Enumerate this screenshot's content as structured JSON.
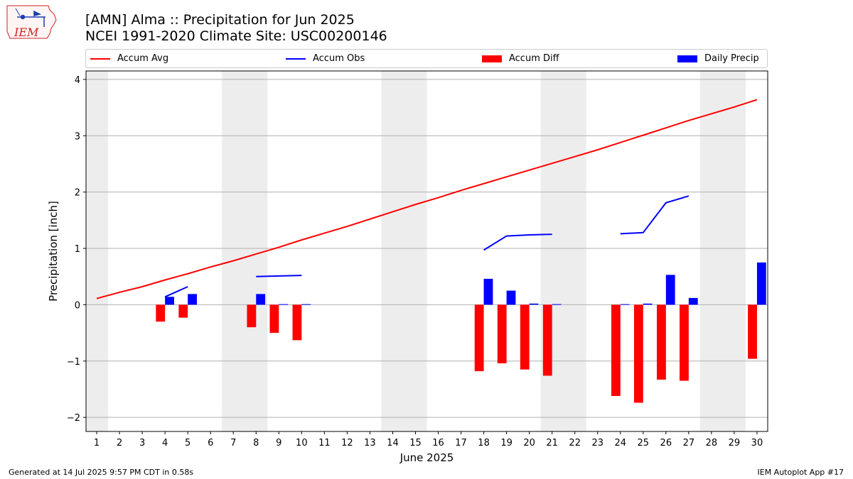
{
  "header": {
    "title_line1": "[AMN] Alma :: Precipitation for Jun 2025",
    "title_line2": "NCEI 1991-2020 Climate Site: USC00200146"
  },
  "logo": {
    "text": "IEM",
    "icon": "iem-iowa-logo-icon"
  },
  "legend": {
    "items": [
      {
        "label": "Accum Avg",
        "kind": "line",
        "color": "#ff0000"
      },
      {
        "label": "Accum Obs",
        "kind": "line",
        "color": "#0000ff"
      },
      {
        "label": "Accum Diff",
        "kind": "bar",
        "color": "#ff0000"
      },
      {
        "label": "Daily Precip",
        "kind": "bar",
        "color": "#0000ff"
      }
    ]
  },
  "footer": {
    "left": "Generated at 14 Jul 2025 9:57 PM CDT in 0.58s",
    "right": "IEM Autoplot App #17"
  },
  "chart_data": {
    "type": "bar",
    "xlabel": "June 2025",
    "ylabel": "Precipitation [inch]",
    "ylim": [
      -2.25,
      4.15
    ],
    "yticks": [
      -2,
      -1,
      0,
      1,
      2,
      3,
      4
    ],
    "ytick_labels": [
      "−2",
      "−1",
      "0",
      "1",
      "2",
      "3",
      "4"
    ],
    "x": [
      1,
      2,
      3,
      4,
      5,
      6,
      7,
      8,
      9,
      10,
      11,
      12,
      13,
      14,
      15,
      16,
      17,
      18,
      19,
      20,
      21,
      22,
      23,
      24,
      25,
      26,
      27,
      28,
      29,
      30
    ],
    "grid": "horizontal",
    "weekend_shading": [
      [
        1,
        1
      ],
      [
        7,
        8
      ],
      [
        14,
        15
      ],
      [
        21,
        22
      ],
      [
        28,
        29
      ]
    ],
    "series": [
      {
        "name": "Accum Avg",
        "kind": "line",
        "color": "#ff0000",
        "values": [
          0.11,
          0.22,
          0.32,
          0.44,
          0.55,
          0.67,
          0.78,
          0.9,
          1.02,
          1.15,
          1.27,
          1.39,
          1.52,
          1.65,
          1.78,
          1.9,
          2.03,
          2.15,
          2.27,
          2.39,
          2.51,
          2.63,
          2.75,
          2.88,
          3.01,
          3.14,
          3.27,
          3.39,
          3.51,
          3.64
        ]
      },
      {
        "name": "Accum Obs",
        "kind": "line",
        "color": "#0000ff",
        "segments": [
          {
            "x": [
              4,
              5
            ],
            "y": [
              0.14,
              0.32
            ]
          },
          {
            "x": [
              8,
              9,
              10
            ],
            "y": [
              0.5,
              0.51,
              0.52
            ]
          },
          {
            "x": [
              18,
              19,
              20,
              21
            ],
            "y": [
              0.97,
              1.22,
              1.24,
              1.25
            ]
          },
          {
            "x": [
              24,
              25,
              26,
              27
            ],
            "y": [
              1.26,
              1.28,
              1.81,
              1.93
            ]
          }
        ]
      },
      {
        "name": "Accum Diff",
        "kind": "bar",
        "color": "#ff0000",
        "values": [
          null,
          null,
          null,
          -0.3,
          -0.23,
          null,
          null,
          -0.4,
          -0.5,
          -0.63,
          null,
          null,
          null,
          null,
          null,
          null,
          null,
          -1.18,
          -1.04,
          -1.15,
          -1.26,
          null,
          null,
          -1.62,
          -1.74,
          -1.33,
          -1.35,
          null,
          null,
          -0.96
        ]
      },
      {
        "name": "Daily Precip",
        "kind": "bar",
        "color": "#0000ff",
        "values": [
          null,
          null,
          null,
          0.14,
          0.19,
          null,
          null,
          0.19,
          0.01,
          0.01,
          null,
          null,
          null,
          null,
          null,
          null,
          null,
          0.46,
          0.25,
          0.02,
          0.01,
          null,
          null,
          0.01,
          0.02,
          0.53,
          0.12,
          null,
          null,
          0.75
        ]
      }
    ]
  }
}
